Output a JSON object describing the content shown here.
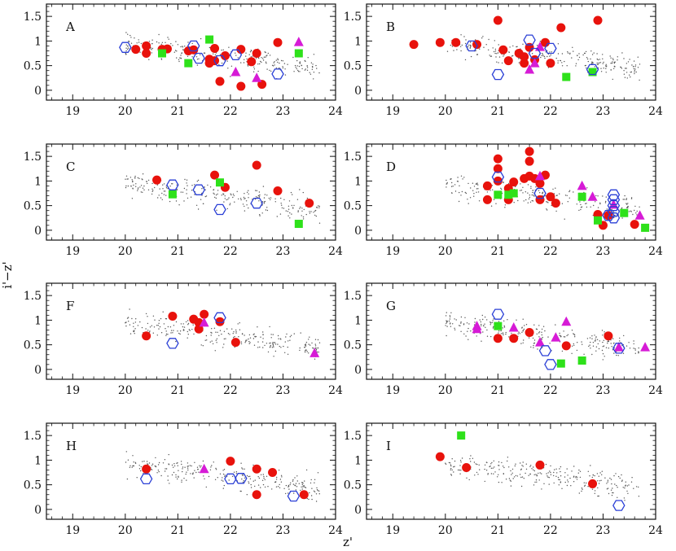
{
  "chart_data": {
    "type": "scatter",
    "title": "",
    "xlabel": "z'",
    "ylabel": "i'−z'",
    "xlim": [
      18.5,
      24
    ],
    "ylim": [
      -0.2,
      1.75
    ],
    "xticks": [
      19,
      20,
      21,
      22,
      23,
      24
    ],
    "yticks": [
      0,
      0.5,
      1,
      1.5
    ],
    "series_styles": {
      "red": {
        "marker": "circle",
        "color": "#e8120c"
      },
      "blue": {
        "marker": "hexagon-open",
        "color": "#2a3fd6"
      },
      "green": {
        "marker": "square",
        "color": "#2ee11a"
      },
      "magenta": {
        "marker": "triangle",
        "color": "#d61bd6"
      },
      "bg": {
        "marker": "dot",
        "color": "#555555"
      }
    },
    "panels": [
      {
        "label": "A",
        "red": [
          [
            20.2,
            0.83
          ],
          [
            20.4,
            0.9
          ],
          [
            20.4,
            0.75
          ],
          [
            20.7,
            0.83
          ],
          [
            20.8,
            0.84
          ],
          [
            21.2,
            0.8
          ],
          [
            21.3,
            0.82
          ],
          [
            21.6,
            0.63
          ],
          [
            21.6,
            0.55
          ],
          [
            21.7,
            0.85
          ],
          [
            21.7,
            0.6
          ],
          [
            21.8,
            0.18
          ],
          [
            21.9,
            0.7
          ],
          [
            22.2,
            0.83
          ],
          [
            22.2,
            0.08
          ],
          [
            22.4,
            0.58
          ],
          [
            22.5,
            0.75
          ],
          [
            22.6,
            0.12
          ],
          [
            22.9,
            0.97
          ]
        ],
        "blue": [
          [
            20.0,
            0.87
          ],
          [
            21.3,
            0.9
          ],
          [
            21.4,
            0.65
          ],
          [
            21.8,
            0.6
          ],
          [
            22.1,
            0.72
          ],
          [
            22.9,
            0.33
          ]
        ],
        "green": [
          [
            20.7,
            0.75
          ],
          [
            21.2,
            0.55
          ],
          [
            21.6,
            1.03
          ],
          [
            23.3,
            0.75
          ]
        ],
        "magenta": [
          [
            22.1,
            0.37
          ],
          [
            22.5,
            0.25
          ],
          [
            23.3,
            0.98
          ]
        ]
      },
      {
        "label": "B",
        "red": [
          [
            19.4,
            0.93
          ],
          [
            19.9,
            0.97
          ],
          [
            20.2,
            0.97
          ],
          [
            20.6,
            0.93
          ],
          [
            21.0,
            1.42
          ],
          [
            21.1,
            0.82
          ],
          [
            21.2,
            0.6
          ],
          [
            21.4,
            0.75
          ],
          [
            21.5,
            0.68
          ],
          [
            21.5,
            0.55
          ],
          [
            21.6,
            0.87
          ],
          [
            21.7,
            0.62
          ],
          [
            21.9,
            0.97
          ],
          [
            22.0,
            0.55
          ],
          [
            22.2,
            1.27
          ],
          [
            22.9,
            1.42
          ]
        ],
        "blue": [
          [
            20.5,
            0.9
          ],
          [
            21.0,
            0.32
          ],
          [
            21.6,
            1.02
          ],
          [
            21.7,
            0.75
          ],
          [
            22.0,
            0.85
          ],
          [
            22.8,
            0.42
          ]
        ],
        "green": [
          [
            22.3,
            0.27
          ],
          [
            22.8,
            0.37
          ]
        ],
        "magenta": [
          [
            21.6,
            0.42
          ],
          [
            21.7,
            0.55
          ],
          [
            21.8,
            0.88
          ]
        ]
      },
      {
        "label": "C",
        "red": [
          [
            20.6,
            1.02
          ],
          [
            21.7,
            1.12
          ],
          [
            21.9,
            0.87
          ],
          [
            22.5,
            1.32
          ],
          [
            22.9,
            0.8
          ],
          [
            23.5,
            0.55
          ]
        ],
        "blue": [
          [
            20.9,
            0.92
          ],
          [
            21.4,
            0.82
          ],
          [
            21.8,
            0.42
          ],
          [
            22.5,
            0.55
          ]
        ],
        "green": [
          [
            20.9,
            0.73
          ],
          [
            21.8,
            0.97
          ],
          [
            23.3,
            0.13
          ]
        ],
        "magenta": []
      },
      {
        "label": "D",
        "red": [
          [
            20.8,
            0.9
          ],
          [
            20.8,
            0.62
          ],
          [
            21.0,
            1.45
          ],
          [
            21.0,
            1.25
          ],
          [
            21.0,
            1.0
          ],
          [
            21.2,
            0.85
          ],
          [
            21.2,
            0.62
          ],
          [
            21.3,
            0.98
          ],
          [
            21.5,
            1.05
          ],
          [
            21.6,
            1.6
          ],
          [
            21.6,
            1.4
          ],
          [
            21.6,
            1.1
          ],
          [
            21.7,
            1.05
          ],
          [
            21.8,
            0.95
          ],
          [
            21.8,
            0.62
          ],
          [
            21.9,
            1.12
          ],
          [
            22.0,
            0.68
          ],
          [
            22.1,
            0.55
          ],
          [
            22.9,
            0.32
          ],
          [
            23.0,
            0.1
          ],
          [
            23.1,
            0.3
          ],
          [
            23.6,
            0.12
          ]
        ],
        "blue": [
          [
            21.0,
            1.08
          ],
          [
            21.8,
            0.75
          ],
          [
            23.1,
            0.3
          ],
          [
            23.2,
            0.72
          ],
          [
            23.2,
            0.62
          ],
          [
            23.2,
            0.5
          ],
          [
            23.2,
            0.38
          ],
          [
            23.2,
            0.25
          ]
        ],
        "green": [
          [
            21.0,
            0.72
          ],
          [
            21.2,
            0.72
          ],
          [
            21.3,
            0.75
          ],
          [
            22.6,
            0.68
          ],
          [
            22.9,
            0.2
          ],
          [
            23.4,
            0.35
          ],
          [
            23.8,
            0.05
          ]
        ],
        "magenta": [
          [
            21.8,
            1.1
          ],
          [
            22.6,
            0.9
          ],
          [
            22.8,
            0.68
          ],
          [
            23.2,
            0.52
          ],
          [
            23.7,
            0.3
          ]
        ]
      },
      {
        "label": "F",
        "red": [
          [
            20.4,
            0.68
          ],
          [
            20.9,
            1.08
          ],
          [
            21.3,
            1.02
          ],
          [
            21.4,
            0.95
          ],
          [
            21.4,
            0.82
          ],
          [
            21.5,
            1.12
          ],
          [
            21.8,
            0.97
          ],
          [
            22.1,
            0.55
          ]
        ],
        "blue": [
          [
            20.9,
            0.53
          ],
          [
            21.8,
            1.05
          ]
        ],
        "green": [],
        "magenta": [
          [
            21.5,
            0.95
          ],
          [
            23.6,
            0.33
          ]
        ]
      },
      {
        "label": "G",
        "red": [
          [
            21.0,
            0.63
          ],
          [
            21.3,
            0.63
          ],
          [
            21.6,
            0.75
          ],
          [
            22.3,
            0.48
          ],
          [
            23.1,
            0.68
          ]
        ],
        "blue": [
          [
            21.0,
            1.12
          ],
          [
            21.9,
            0.38
          ],
          [
            22.0,
            0.1
          ],
          [
            23.3,
            0.43
          ]
        ],
        "green": [
          [
            21.0,
            0.88
          ],
          [
            22.2,
            0.12
          ],
          [
            22.6,
            0.18
          ]
        ],
        "magenta": [
          [
            20.6,
            0.88
          ],
          [
            20.6,
            0.82
          ],
          [
            21.3,
            0.85
          ],
          [
            21.8,
            0.55
          ],
          [
            22.1,
            0.65
          ],
          [
            22.3,
            0.97
          ],
          [
            23.3,
            0.45
          ],
          [
            23.8,
            0.45
          ]
        ]
      },
      {
        "label": "H",
        "red": [
          [
            20.4,
            0.82
          ],
          [
            22.0,
            0.98
          ],
          [
            22.5,
            0.82
          ],
          [
            22.5,
            0.3
          ],
          [
            22.8,
            0.75
          ],
          [
            23.4,
            0.3
          ]
        ],
        "blue": [
          [
            20.4,
            0.62
          ],
          [
            22.0,
            0.62
          ],
          [
            22.2,
            0.63
          ],
          [
            23.2,
            0.27
          ]
        ],
        "green": [],
        "magenta": [
          [
            21.5,
            0.82
          ]
        ]
      },
      {
        "label": "I",
        "red": [
          [
            19.9,
            1.07
          ],
          [
            20.4,
            0.85
          ],
          [
            21.8,
            0.9
          ],
          [
            22.8,
            0.52
          ]
        ],
        "blue": [
          [
            23.3,
            0.08
          ]
        ],
        "green": [
          [
            20.3,
            1.5
          ]
        ],
        "magenta": []
      }
    ]
  }
}
